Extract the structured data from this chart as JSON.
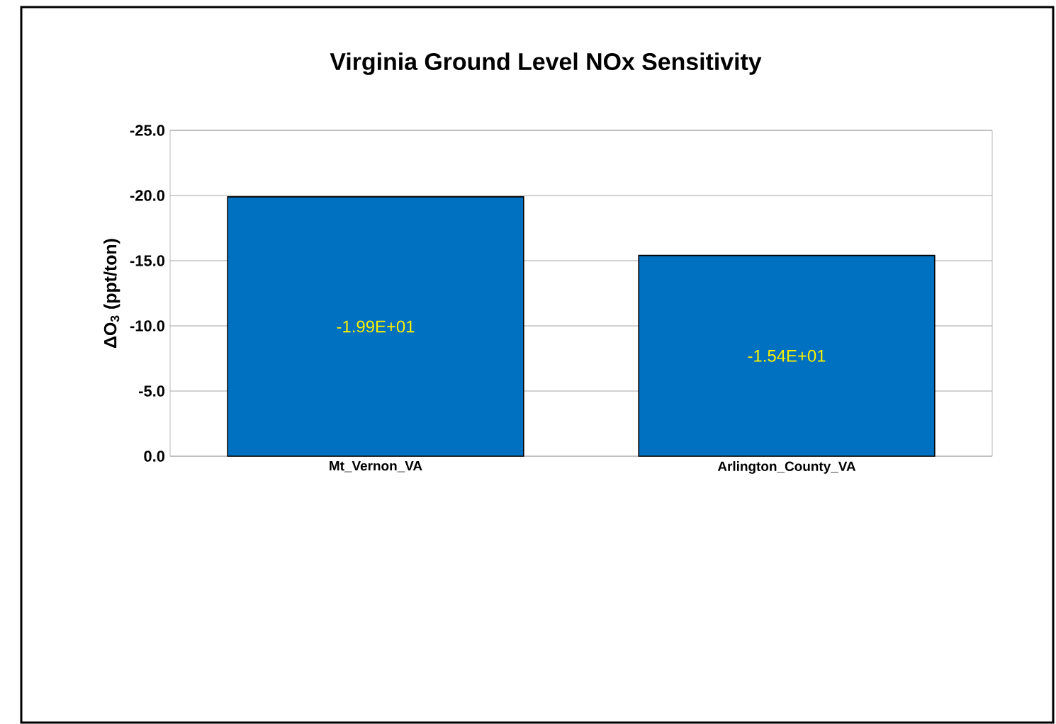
{
  "chart_data": {
    "type": "bar",
    "title": "Virginia Ground Level NOx Sensitivity",
    "ylabel": "ΔO$_{3}$ (ppt/ton)",
    "categories": [
      "Mt_Vernon_VA",
      "Arlington_County_VA"
    ],
    "values": [
      -19.9,
      -15.4
    ],
    "value_labels": [
      "-1.99E+01",
      "-1.54E+01"
    ],
    "color": "#0070c0",
    "ylim": [
      0,
      -25
    ],
    "yticks": [
      {
        "value": 0,
        "label": "0.0"
      },
      {
        "value": -5,
        "label": "-5.0"
      },
      {
        "value": -10,
        "label": "-10.0"
      },
      {
        "value": -15,
        "label": "-15.0"
      },
      {
        "value": -20,
        "label": "-20.0"
      },
      {
        "value": -25,
        "label": "-25.0"
      }
    ],
    "grid": "y"
  }
}
